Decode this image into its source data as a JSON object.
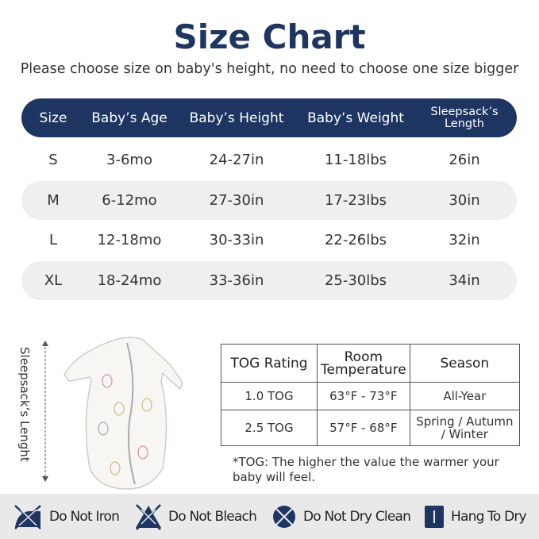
{
  "title": "Size Chart",
  "subtitle": "Please choose size on baby's height, no need to choose one size bigger",
  "size_table": {
    "headers": [
      "Size",
      "Baby’s Age",
      "Baby’s Height",
      "Baby’s Weight",
      "Sleepsack’s Length"
    ],
    "rows": [
      [
        "S",
        "3-6mo",
        "24-27in",
        "11-18lbs",
        "26in"
      ],
      [
        "M",
        "6-12mo",
        "27-30in",
        "17-23lbs",
        "30in"
      ],
      [
        "L",
        "12-18mo",
        "30-33in",
        "22-26lbs",
        "32in"
      ],
      [
        "XL",
        "18-24mo",
        "33-36in",
        "25-30lbs",
        "34in"
      ]
    ]
  },
  "sleepsack_label": "Sleepsack’s Lenght",
  "tog_table": {
    "headers": [
      "TOG Rating",
      "Room Temperature",
      "Season"
    ],
    "rows": [
      [
        "1.0 TOG",
        "63°F - 73°F",
        "All-Year"
      ],
      [
        "2.5 TOG",
        "57°F - 68°F",
        "Spring / Autumn / Winter"
      ]
    ]
  },
  "tog_note": "*TOG: The higher the value the warmer your baby will feel.",
  "care": [
    {
      "icon": "do-not-iron-icon",
      "label": "Do Not Iron"
    },
    {
      "icon": "do-not-bleach-icon",
      "label": "Do Not Bleach"
    },
    {
      "icon": "do-not-dry-clean-icon",
      "label": "Do Not Dry Clean"
    },
    {
      "icon": "hang-to-dry-icon",
      "label": "Hang To Dry"
    }
  ],
  "colors": {
    "navy": "#1e3561",
    "band": "#efefef",
    "care_bg": "#e9e9e9"
  }
}
